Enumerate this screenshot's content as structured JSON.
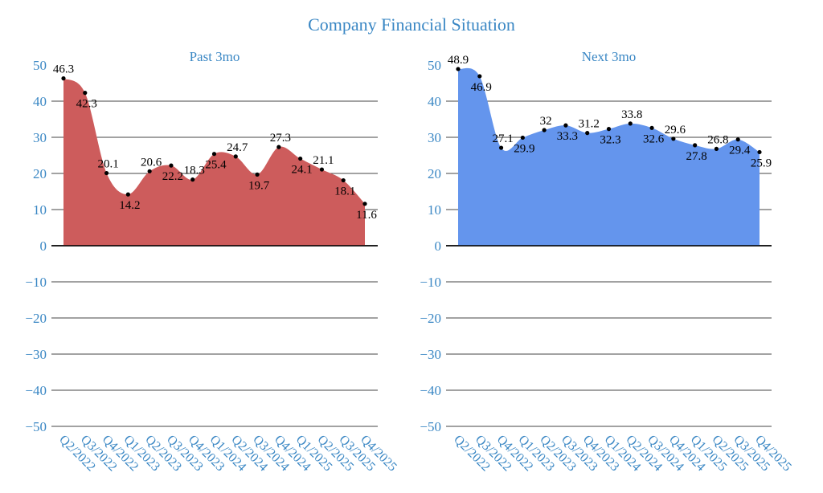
{
  "chart_data": {
    "type": "area",
    "title": "Company Financial Situation",
    "charts": [
      {
        "subtitle": "Past 3mo",
        "color": "#cd5c5c",
        "categories": [
          "Q2/2022",
          "Q3/2022",
          "Q4/2022",
          "Q1/2023",
          "Q2/2023",
          "Q3/2023",
          "Q4/2023",
          "Q1/2024",
          "Q2/2024",
          "Q3/2024",
          "Q4/2024",
          "Q1/2025",
          "Q2/2025",
          "Q3/2025",
          "Q4/2025"
        ],
        "values": [
          46.3,
          42.3,
          20.1,
          14.2,
          20.6,
          22.2,
          18.3,
          25.4,
          24.7,
          19.7,
          27.3,
          24.1,
          21.1,
          18.1,
          11.6
        ],
        "ylim": [
          -50,
          50
        ],
        "yticks": [
          50,
          40,
          30,
          20,
          10,
          0,
          -10,
          -20,
          -30,
          -40,
          -50
        ]
      },
      {
        "subtitle": "Next 3mo",
        "color": "#6495ed",
        "categories": [
          "Q2/2022",
          "Q3/2022",
          "Q4/2022",
          "Q1/2023",
          "Q2/2023",
          "Q3/2023",
          "Q4/2023",
          "Q1/2024",
          "Q2/2024",
          "Q3/2024",
          "Q4/2024",
          "Q1/2025",
          "Q2/2025",
          "Q3/2025",
          "Q4/2025"
        ],
        "values": [
          48.9,
          46.9,
          27.1,
          29.9,
          32,
          33.3,
          31.2,
          32.3,
          33.8,
          32.6,
          29.6,
          27.8,
          26.8,
          29.4,
          25.9
        ],
        "ylim": [
          -50,
          50
        ],
        "yticks": [
          50,
          40,
          30,
          20,
          10,
          0,
          -10,
          -20,
          -30,
          -40,
          -50
        ]
      }
    ]
  }
}
